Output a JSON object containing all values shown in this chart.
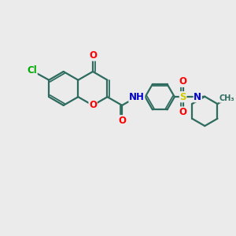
{
  "background_color": "#ebebeb",
  "bond_color": "#2d6b5e",
  "bond_width": 1.6,
  "atom_colors": {
    "O": "#ff0000",
    "N": "#0000cc",
    "Cl": "#00aa00",
    "S": "#cccc00",
    "C": "#2d6b5e",
    "H": "#888888"
  },
  "font_size": 8.5,
  "figsize": [
    3.0,
    3.0
  ],
  "dpi": 100
}
